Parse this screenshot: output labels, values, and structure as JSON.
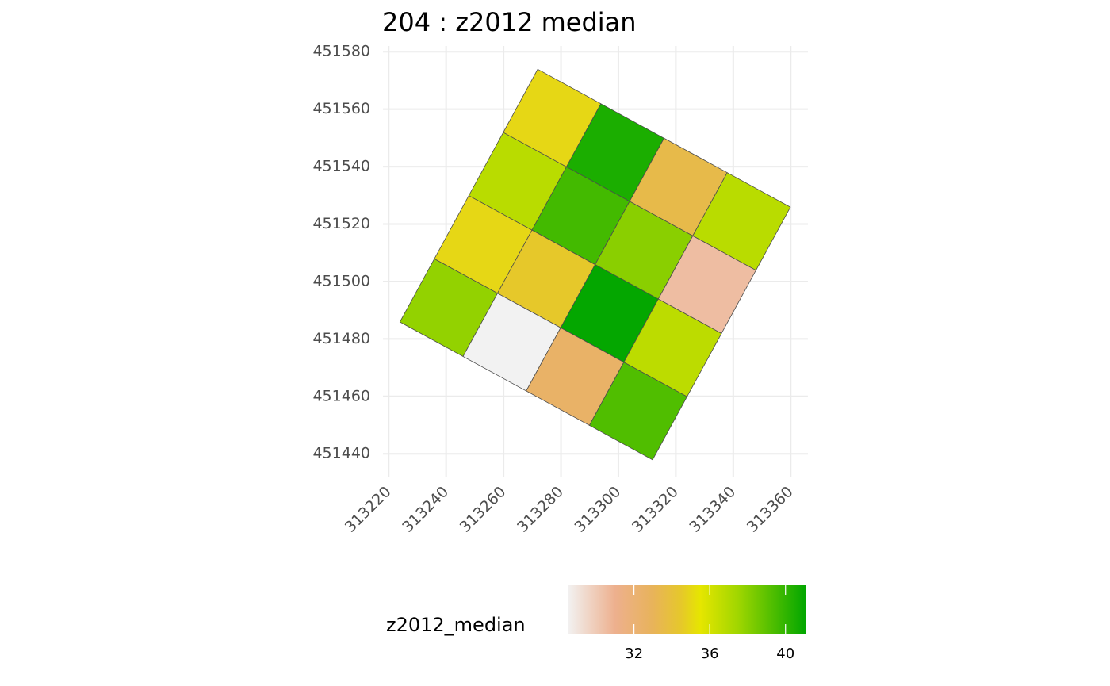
{
  "chart_data": {
    "type": "polygon-map",
    "title": "204 : z2012 median",
    "xlim": [
      313218,
      313366
    ],
    "ylim": [
      451432,
      451582
    ],
    "xticks": [
      313220,
      313240,
      313260,
      313280,
      313300,
      313320,
      313340,
      313360
    ],
    "yticks": [
      451440,
      451460,
      451480,
      451500,
      451520,
      451540,
      451560,
      451580
    ],
    "grid": true,
    "legend_title": "z2012_median",
    "colorlim": [
      28.5,
      41.1
    ],
    "colorticks": [
      32,
      36,
      40
    ],
    "colorscale": [
      {
        "value": 28.5,
        "color": "#f2f2f2"
      },
      {
        "value": 31,
        "color": "#edb08e"
      },
      {
        "value": 33,
        "color": "#e8b35a"
      },
      {
        "value": 34.5,
        "color": "#e6c82a"
      },
      {
        "value": 35.5,
        "color": "#e6e600"
      },
      {
        "value": 37.5,
        "color": "#a0d600"
      },
      {
        "value": 41.1,
        "color": "#00a600"
      }
    ],
    "cells": [
      {
        "x": [
          313271.9,
          313293.9,
          313281.9,
          313259.9
        ],
        "y": [
          451573.9,
          451561.9,
          451539.9,
          451551.9
        ],
        "value": 35.0
      },
      {
        "x": [
          313293.9,
          313315.9,
          313303.9,
          313281.9
        ],
        "y": [
          451561.9,
          451549.9,
          451527.9,
          451539.9
        ],
        "value": 40.5
      },
      {
        "x": [
          313315.9,
          313337.9,
          313325.9,
          313303.9
        ],
        "y": [
          451549.9,
          451537.9,
          451515.9,
          451527.9
        ],
        "value": 33.5
      },
      {
        "x": [
          313337.9,
          313359.9,
          313347.9,
          313325.9
        ],
        "y": [
          451537.9,
          451525.9,
          451503.9,
          451515.9
        ],
        "value": 36.8
      },
      {
        "x": [
          313259.9,
          313281.9,
          313269.9,
          313247.9
        ],
        "y": [
          451551.9,
          451539.9,
          451517.9,
          451529.9
        ],
        "value": 36.8
      },
      {
        "x": [
          313281.9,
          313303.9,
          313291.9,
          313269.9
        ],
        "y": [
          451539.9,
          451527.9,
          451505.9,
          451517.9
        ],
        "value": 39.6
      },
      {
        "x": [
          313303.9,
          313325.9,
          313313.9,
          313291.9
        ],
        "y": [
          451527.9,
          451515.9,
          451493.9,
          451505.9
        ],
        "value": 38.0
      },
      {
        "x": [
          313325.9,
          313347.9,
          313335.9,
          313313.9
        ],
        "y": [
          451515.9,
          451503.9,
          451481.9,
          451493.9
        ],
        "value": 30.5
      },
      {
        "x": [
          313247.9,
          313269.9,
          313257.9,
          313235.9
        ],
        "y": [
          451529.9,
          451517.9,
          451495.9,
          451507.9
        ],
        "value": 35.0
      },
      {
        "x": [
          313269.9,
          313291.9,
          313279.9,
          313257.9
        ],
        "y": [
          451517.9,
          451505.9,
          451483.9,
          451495.9
        ],
        "value": 34.5
      },
      {
        "x": [
          313291.9,
          313313.9,
          313301.9,
          313279.9
        ],
        "y": [
          451505.9,
          451493.9,
          451471.9,
          451483.9
        ],
        "value": 41.0
      },
      {
        "x": [
          313313.9,
          313335.9,
          313323.9,
          313301.9
        ],
        "y": [
          451493.9,
          451481.9,
          451459.9,
          451471.9
        ],
        "value": 36.7
      },
      {
        "x": [
          313235.9,
          313257.9,
          313245.9,
          313223.9
        ],
        "y": [
          451507.9,
          451495.9,
          451473.9,
          451485.9
        ],
        "value": 37.8
      },
      {
        "x": [
          313257.9,
          313279.9,
          313267.9,
          313245.9
        ],
        "y": [
          451495.9,
          451483.9,
          451461.9,
          451473.9
        ],
        "value": 28.5
      },
      {
        "x": [
          313279.9,
          313301.9,
          313289.9,
          313267.9
        ],
        "y": [
          451483.9,
          451471.9,
          451449.9,
          451461.9
        ],
        "value": 32.5
      },
      {
        "x": [
          313301.9,
          313323.9,
          313311.9,
          313289.9
        ],
        "y": [
          451471.9,
          451459.9,
          451437.9,
          451449.9
        ],
        "value": 39.3
      }
    ]
  }
}
